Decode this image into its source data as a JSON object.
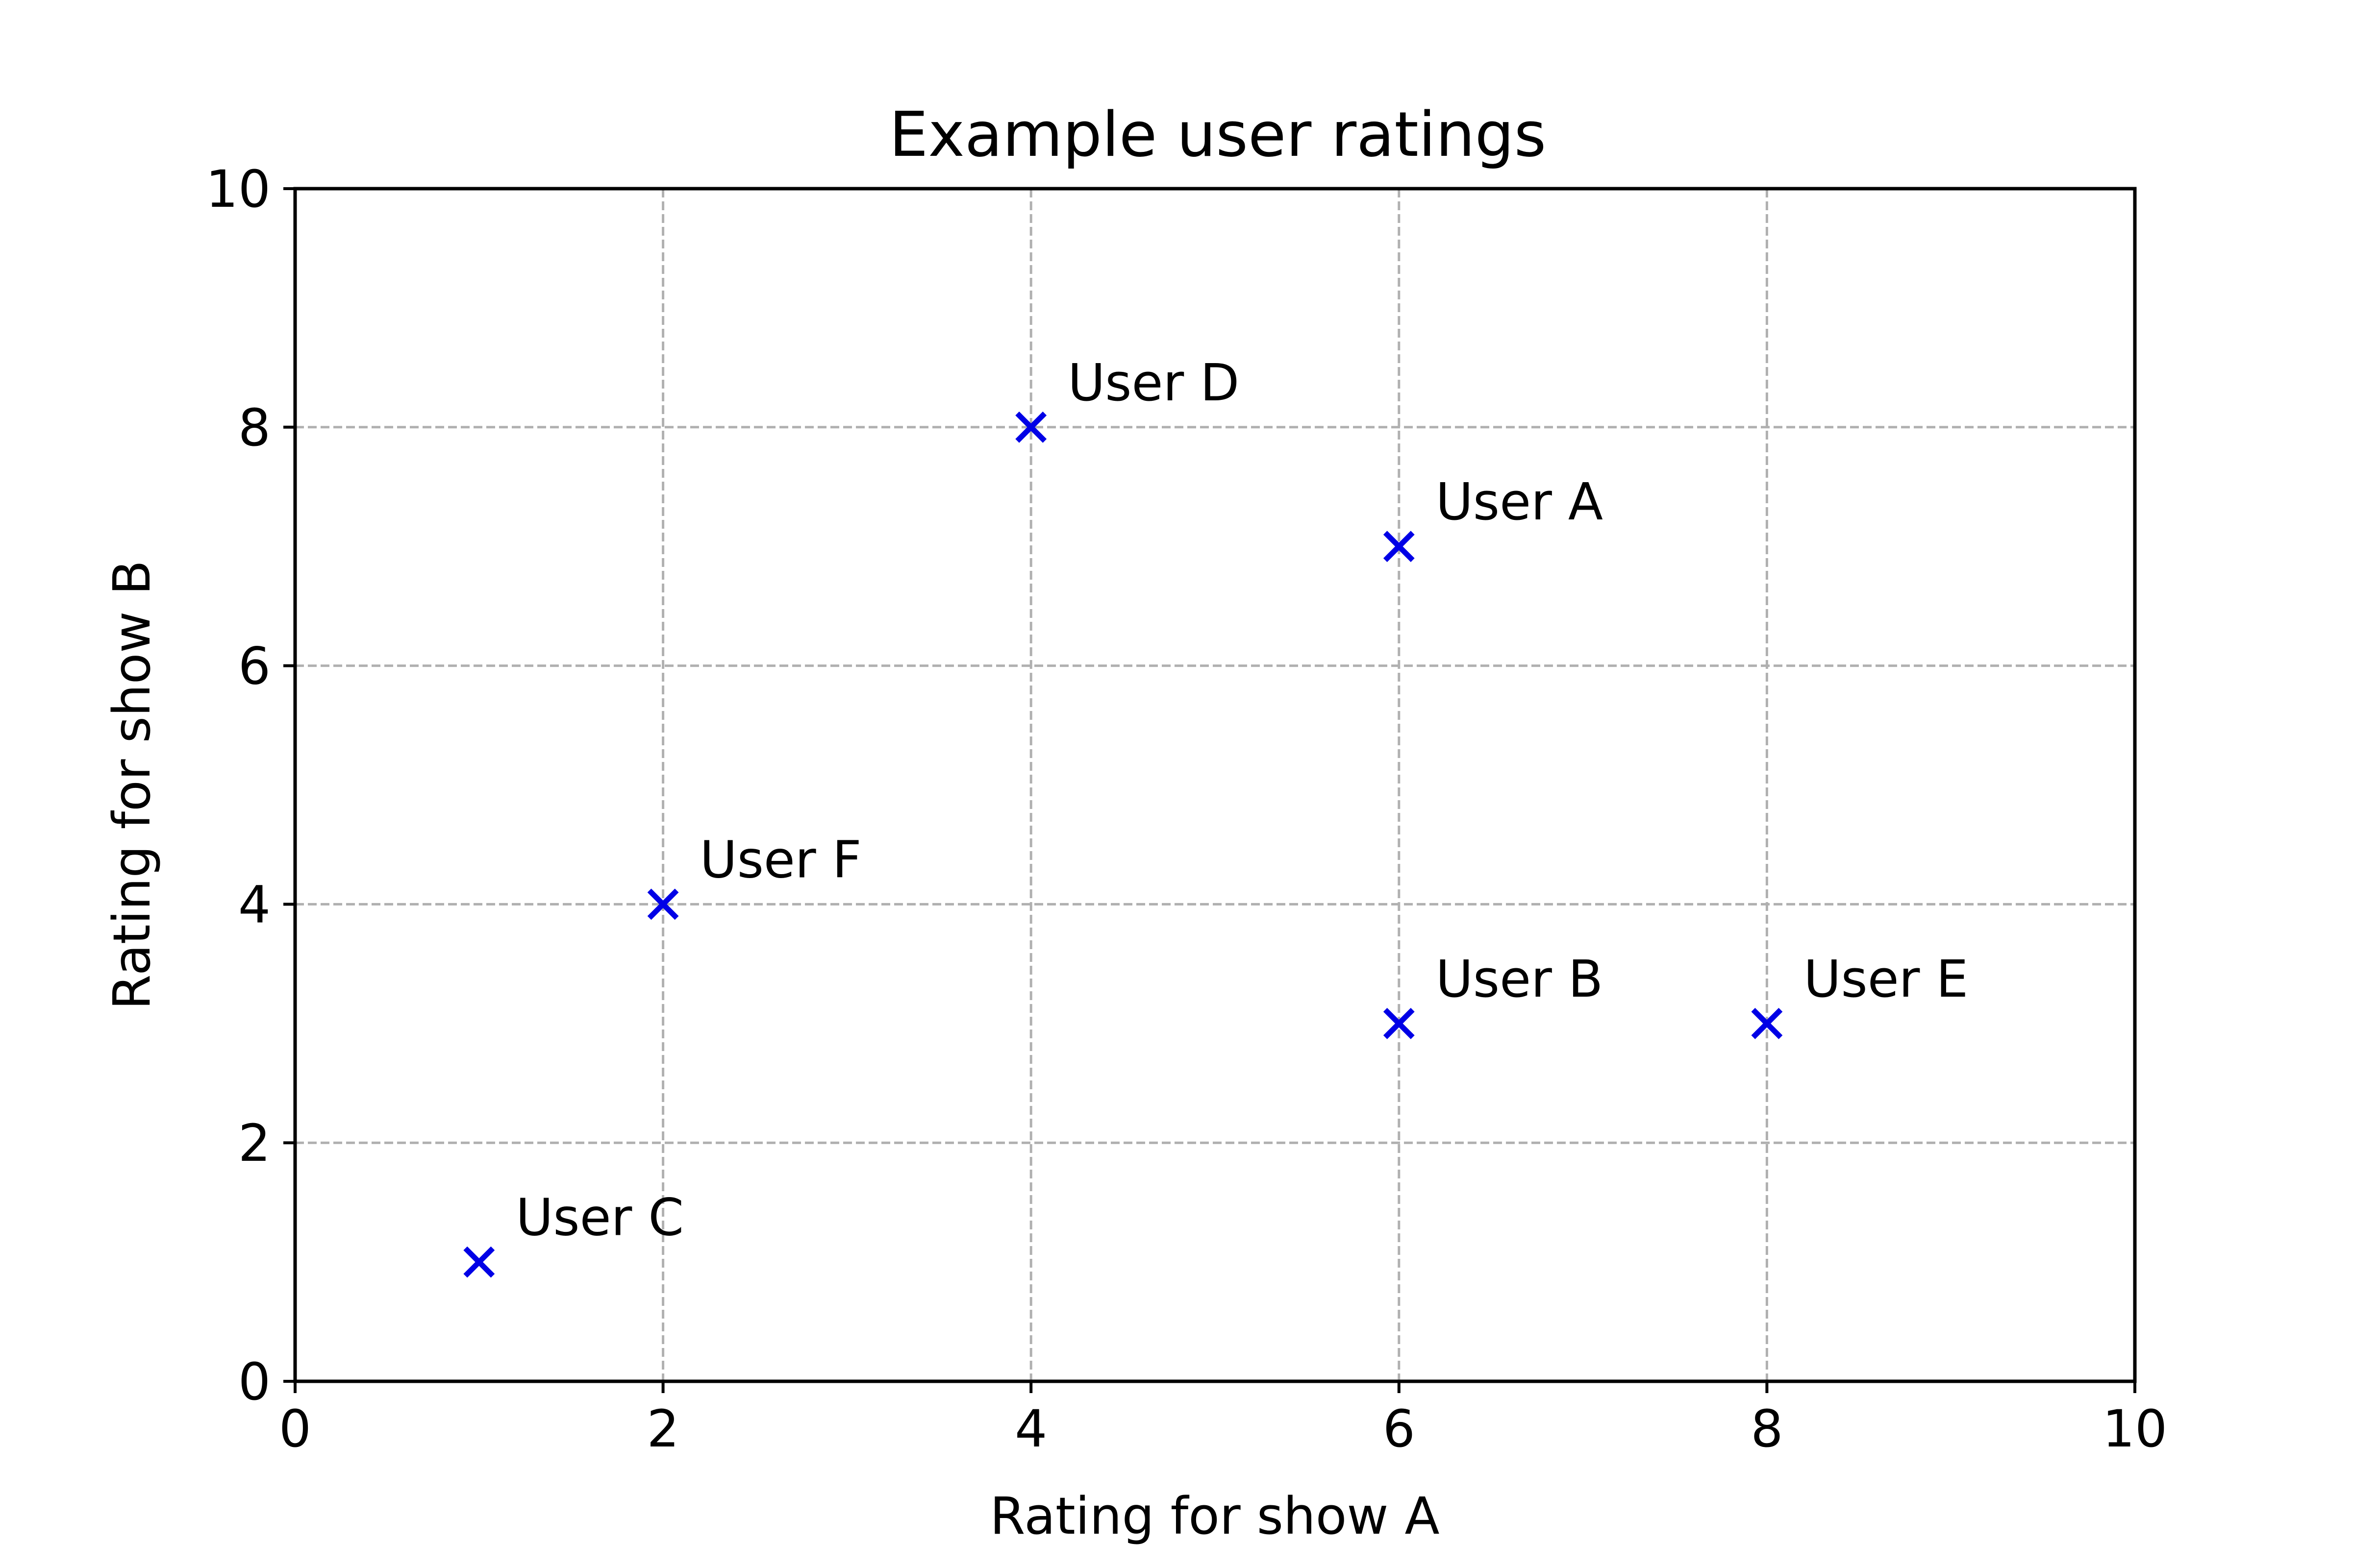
{
  "chart_data": {
    "type": "scatter",
    "title": "Example user ratings",
    "xlabel": "Rating for show A",
    "ylabel": "Rating for show B",
    "xlim": [
      0,
      10
    ],
    "ylim": [
      0,
      10
    ],
    "xticks": [
      "0",
      "2",
      "4",
      "6",
      "8",
      "10"
    ],
    "yticks": [
      "0",
      "2",
      "4",
      "6",
      "8",
      "10"
    ],
    "grid": true,
    "marker": "x",
    "marker_color": "#0000e6",
    "grid_color": "#b0b0b0",
    "points": [
      {
        "label": "User A",
        "x": 6,
        "y": 7
      },
      {
        "label": "User B",
        "x": 6,
        "y": 3
      },
      {
        "label": "User C",
        "x": 1,
        "y": 1
      },
      {
        "label": "User D",
        "x": 4,
        "y": 8
      },
      {
        "label": "User E",
        "x": 8,
        "y": 3
      },
      {
        "label": "User F",
        "x": 2,
        "y": 4
      }
    ]
  }
}
